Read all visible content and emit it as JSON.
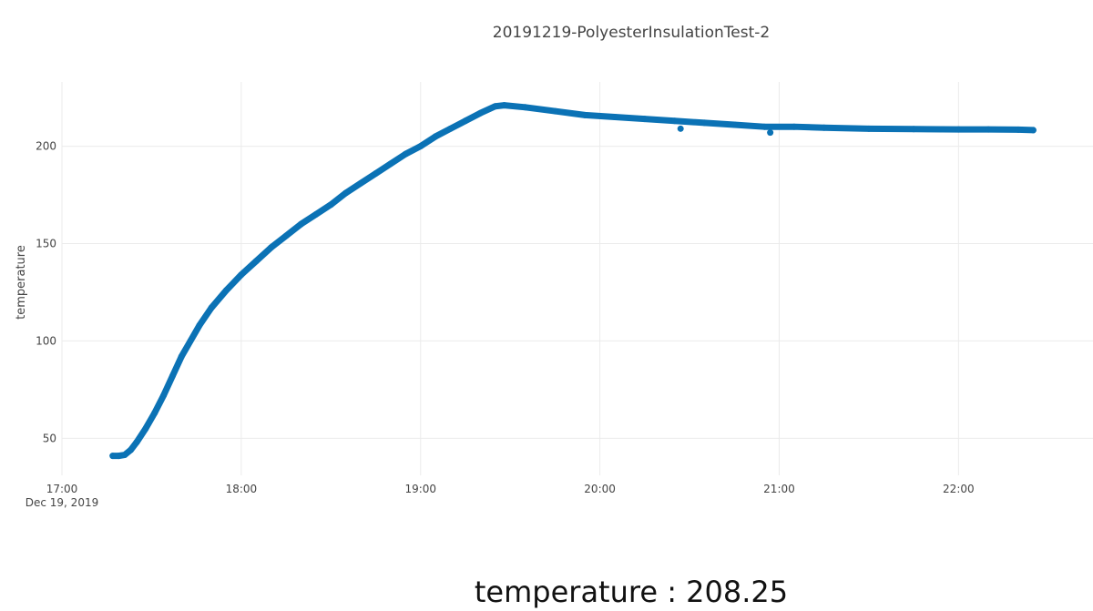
{
  "chart_data": {
    "type": "scatter",
    "title": "20191219-PolyesterInsulationTest-2",
    "y_label": "temperature",
    "x_date": "Dec 19, 2019",
    "grid": true,
    "legend": false,
    "xlim": [
      "17:00",
      "22:45"
    ],
    "xticks": [
      "17:00",
      "18:00",
      "19:00",
      "20:00",
      "21:00",
      "22:00"
    ],
    "ylim": [
      31,
      233
    ],
    "yticks": [
      50,
      100,
      150,
      200
    ],
    "series": [
      {
        "name": "temperature",
        "color": "#0b72b5",
        "mode": "lines+markers",
        "x": [
          "17:17",
          "17:19",
          "17:21",
          "17:23",
          "17:25",
          "17:28",
          "17:31",
          "17:34",
          "17:37",
          "17:40",
          "17:43",
          "17:46",
          "17:50",
          "17:55",
          "18:00",
          "18:05",
          "18:10",
          "18:15",
          "18:20",
          "18:25",
          "18:30",
          "18:35",
          "18:40",
          "18:45",
          "18:50",
          "18:55",
          "19:00",
          "19:05",
          "19:10",
          "19:15",
          "19:20",
          "19:25",
          "19:28",
          "19:35",
          "19:45",
          "19:55",
          "20:05",
          "20:15",
          "20:25",
          "20:35",
          "20:45",
          "20:55",
          "21:05",
          "21:15",
          "21:30",
          "21:45",
          "22:00",
          "22:10",
          "22:20",
          "22:25"
        ],
        "values": [
          41,
          41,
          41.5,
          44,
          48,
          55,
          63,
          72,
          82,
          92,
          100,
          108,
          117,
          126,
          134,
          141,
          148,
          154,
          160,
          165,
          170,
          176,
          181,
          186,
          191,
          196,
          200,
          205,
          209,
          213,
          217,
          220.5,
          221,
          220,
          218,
          216,
          215,
          214,
          213,
          212,
          211,
          210,
          210,
          209.5,
          209,
          208.8,
          208.6,
          208.6,
          208.5,
          208.25
        ]
      },
      {
        "name": "temperature",
        "color": "#0b72b5",
        "mode": "markers",
        "x": [
          "20:27",
          "20:57"
        ],
        "values": [
          209,
          207
        ]
      }
    ],
    "readout": "temperature : 208.25"
  }
}
